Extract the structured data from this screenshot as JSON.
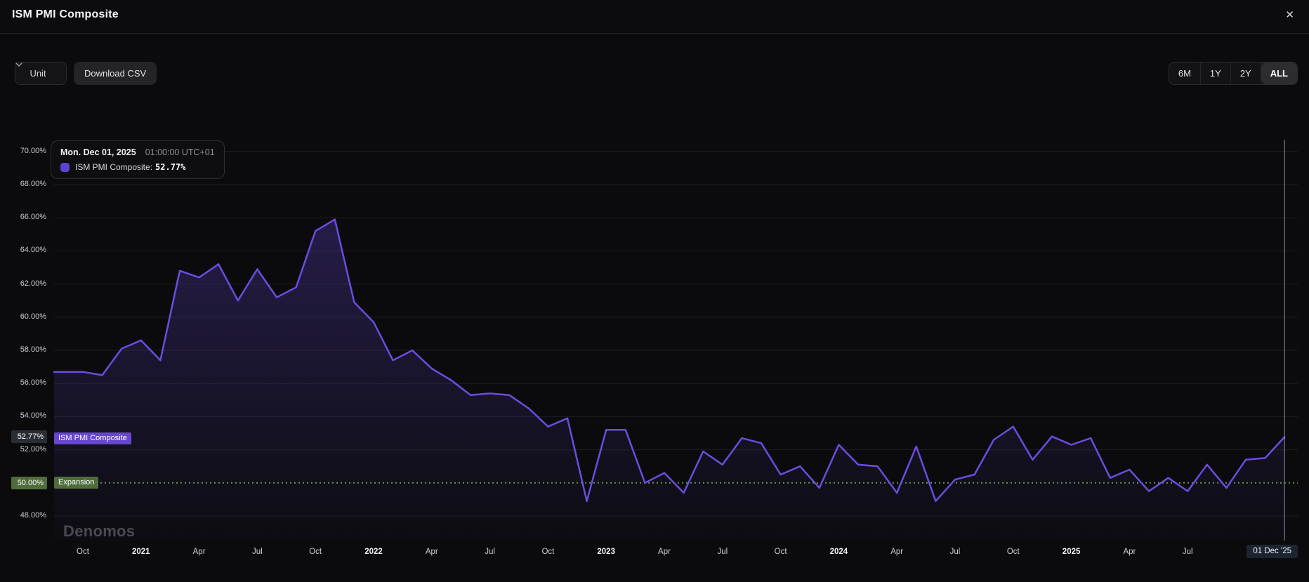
{
  "header": {
    "title": "ISM PMI Composite",
    "close_icon": "✕"
  },
  "toolbar": {
    "unit_label": "Unit",
    "download_csv_label": "Download CSV",
    "ranges": [
      "6M",
      "1Y",
      "2Y",
      "ALL"
    ],
    "active_range": "ALL"
  },
  "tooltip": {
    "date": "Mon. Dec 01, 2025",
    "time": "01:00:00 UTC+01",
    "series_label": "ISM PMI Composite:",
    "value": "52.77%"
  },
  "badges": {
    "series": "ISM PMI Composite",
    "threshold": "Expansion"
  },
  "y_axis": {
    "current_value_label": "52.77%",
    "threshold_label": "50.00%"
  },
  "x_axis": {
    "ticks": [
      {
        "label": "Oct",
        "index": 1
      },
      {
        "label": "2021",
        "index": 4,
        "bold": true
      },
      {
        "label": "Apr",
        "index": 7
      },
      {
        "label": "Jul",
        "index": 10
      },
      {
        "label": "Oct",
        "index": 13
      },
      {
        "label": "2022",
        "index": 16,
        "bold": true
      },
      {
        "label": "Apr",
        "index": 19
      },
      {
        "label": "Jul",
        "index": 22
      },
      {
        "label": "Oct",
        "index": 25
      },
      {
        "label": "2023",
        "index": 28,
        "bold": true
      },
      {
        "label": "Apr",
        "index": 31
      },
      {
        "label": "Jul",
        "index": 34
      },
      {
        "label": "Oct",
        "index": 37
      },
      {
        "label": "2024",
        "index": 40,
        "bold": true
      },
      {
        "label": "Apr",
        "index": 43
      },
      {
        "label": "Jul",
        "index": 46
      },
      {
        "label": "Oct",
        "index": 49
      },
      {
        "label": "2025",
        "index": 52,
        "bold": true
      },
      {
        "label": "Apr",
        "index": 55
      },
      {
        "label": "Jul",
        "index": 58
      },
      {
        "label": "01 Dec '25",
        "index": 63,
        "highlight": true
      }
    ]
  },
  "watermark": "Denomos",
  "colors": {
    "line": "#6c4ce0",
    "area_tint": "#6a4be0",
    "series_badge": "#6746d2",
    "tooltip_swatch": "#6142cf",
    "threshold_green": "#4e6d3b",
    "threshold_dotted": "#5f9a42",
    "crosshair": "#94a5c5",
    "current_ylabel_bg": "#2b2d34",
    "current_xlabel_bg": "#1d2431",
    "gridline": "#1e1e22"
  },
  "chart_data": {
    "type": "area",
    "title": "ISM PMI Composite",
    "unit": "%",
    "grid": true,
    "ylim": [
      47,
      71
    ],
    "y_ticks": [
      {
        "value": 70,
        "label": "70.00%"
      },
      {
        "value": 68,
        "label": "68.00%"
      },
      {
        "value": 66,
        "label": "66.00%"
      },
      {
        "value": 64,
        "label": "64.00%"
      },
      {
        "value": 62,
        "label": "62.00%"
      },
      {
        "value": 60,
        "label": "60.00%"
      },
      {
        "value": 58,
        "label": "58.00%"
      },
      {
        "value": 56,
        "label": "56.00%"
      },
      {
        "value": 54,
        "label": "54.00%"
      },
      {
        "value": 52,
        "label": "52.00%"
      },
      {
        "value": 48,
        "label": "48.00%"
      }
    ],
    "threshold": {
      "value": 50.0,
      "label": "Expansion",
      "tick_label": "50.00%"
    },
    "current": {
      "x": "Dec 2025",
      "value": 52.77,
      "tick_label": "01 Dec '25"
    },
    "x": [
      "Sep 2020",
      "Oct 2020",
      "Nov 2020",
      "Dec 2020",
      "Jan 2021",
      "Feb 2021",
      "Mar 2021",
      "Apr 2021",
      "May 2021",
      "Jun 2021",
      "Jul 2021",
      "Aug 2021",
      "Sep 2021",
      "Oct 2021",
      "Nov 2021",
      "Dec 2021",
      "Jan 2022",
      "Feb 2022",
      "Mar 2022",
      "Apr 2022",
      "May 2022",
      "Jun 2022",
      "Jul 2022",
      "Aug 2022",
      "Sep 2022",
      "Oct 2022",
      "Nov 2022",
      "Dec 2022",
      "Jan 2023",
      "Feb 2023",
      "Mar 2023",
      "Apr 2023",
      "May 2023",
      "Jun 2023",
      "Jul 2023",
      "Aug 2023",
      "Sep 2023",
      "Oct 2023",
      "Nov 2023",
      "Dec 2023",
      "Jan 2024",
      "Feb 2024",
      "Mar 2024",
      "Apr 2024",
      "May 2024",
      "Jun 2024",
      "Jul 2024",
      "Aug 2024",
      "Sep 2024",
      "Oct 2024",
      "Nov 2024",
      "Dec 2024",
      "Jan 2025",
      "Feb 2025",
      "Mar 2025",
      "Apr 2025",
      "May 2025",
      "Jun 2025",
      "Jul 2025",
      "Aug 2025",
      "Sep 2025",
      "Oct 2025",
      "Nov 2025",
      "Dec 2025"
    ],
    "values": [
      56.7,
      56.7,
      56.5,
      58.1,
      58.6,
      57.4,
      62.8,
      62.4,
      63.2,
      61.0,
      62.9,
      61.2,
      61.8,
      65.2,
      65.9,
      60.9,
      59.7,
      57.4,
      58.0,
      56.9,
      56.2,
      55.3,
      55.4,
      55.3,
      54.5,
      53.4,
      53.9,
      48.9,
      53.2,
      53.2,
      50.0,
      50.6,
      49.4,
      51.9,
      51.1,
      52.7,
      52.4,
      50.5,
      51.0,
      49.7,
      52.3,
      51.1,
      51.0,
      49.4,
      52.2,
      48.9,
      50.2,
      50.5,
      52.6,
      53.4,
      51.4,
      52.8,
      52.3,
      52.7,
      50.3,
      50.8,
      49.5,
      50.3,
      49.5,
      51.1,
      49.7,
      51.4,
      51.5,
      52.77
    ]
  }
}
